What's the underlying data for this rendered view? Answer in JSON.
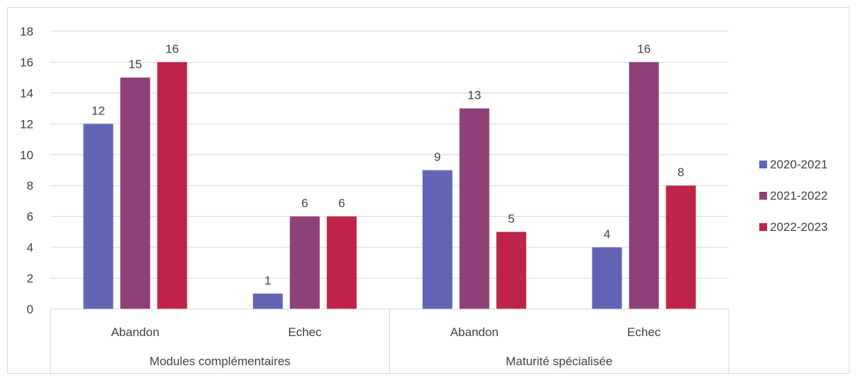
{
  "chart_data": {
    "type": "bar",
    "title": "",
    "xlabel": "",
    "ylabel": "",
    "ylim": [
      0,
      18
    ],
    "yticks": [
      0,
      2,
      4,
      6,
      8,
      10,
      12,
      14,
      16,
      18
    ],
    "grid": true,
    "legend_position": "right",
    "groups": [
      {
        "label": "Modules complémentaires",
        "categories": [
          "Abandon",
          "Echec"
        ]
      },
      {
        "label": "Maturité spécialisée",
        "categories": [
          "Abandon",
          "Echec"
        ]
      }
    ],
    "categories": [
      "Abandon",
      "Echec",
      "Abandon",
      "Echec"
    ],
    "series": [
      {
        "name": "2020-2021",
        "color": "#6264B4",
        "values": [
          12,
          1,
          9,
          4
        ]
      },
      {
        "name": "2021-2022",
        "color": "#8E4078",
        "values": [
          15,
          6,
          13,
          16
        ]
      },
      {
        "name": "2022-2023",
        "color": "#BE2447",
        "values": [
          16,
          6,
          5,
          8
        ]
      }
    ]
  }
}
